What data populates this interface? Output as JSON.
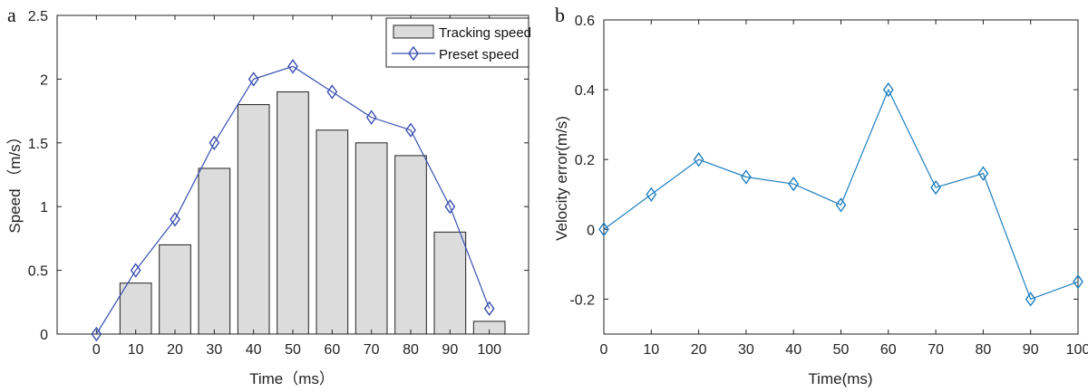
{
  "chart_data": [
    {
      "type": "bar",
      "panel_label": "a",
      "x": [
        0,
        10,
        20,
        30,
        40,
        50,
        60,
        70,
        80,
        90,
        100
      ],
      "xlim": [
        -10,
        110
      ],
      "ylim": [
        0,
        2.5
      ],
      "xticks": [
        0,
        10,
        20,
        30,
        40,
        50,
        60,
        70,
        80,
        90,
        100
      ],
      "yticks": [
        0,
        0.5,
        1,
        1.5,
        2,
        2.5
      ],
      "xlabel": "Time（ms）",
      "ylabel": "Speed （m/s）",
      "legend_position": "top-right",
      "grid": false,
      "series": [
        {
          "name": "Tracking speed",
          "kind": "bar",
          "color": "#dcdcdc",
          "values": [
            0,
            0.4,
            0.7,
            1.3,
            1.8,
            1.9,
            1.6,
            1.5,
            1.4,
            0.8,
            0.1
          ]
        },
        {
          "name": "Preset speed",
          "kind": "line",
          "marker": "diamond",
          "color": "#3a4fb0",
          "values": [
            0,
            0.5,
            0.9,
            1.5,
            2.0,
            2.1,
            1.9,
            1.7,
            1.6,
            1.0,
            0.2
          ]
        }
      ]
    },
    {
      "type": "line",
      "panel_label": "b",
      "x": [
        0,
        10,
        20,
        30,
        40,
        50,
        60,
        70,
        80,
        90,
        100
      ],
      "xlim": [
        0,
        100
      ],
      "ylim": [
        -0.3,
        0.6
      ],
      "xticks": [
        0,
        10,
        20,
        30,
        40,
        50,
        60,
        70,
        80,
        90,
        100
      ],
      "yticks": [
        -0.2,
        0,
        0.2,
        0.4,
        0.6
      ],
      "xlabel": "Time(ms)",
      "ylabel": "Velocity error(m/s)",
      "grid": false,
      "series": [
        {
          "kind": "line",
          "marker": "diamond",
          "color": "#1f7fbf",
          "values": [
            0,
            0.1,
            0.2,
            0.15,
            0.13,
            0.07,
            0.4,
            0.12,
            0.16,
            -0.2,
            -0.15
          ]
        }
      ]
    }
  ]
}
